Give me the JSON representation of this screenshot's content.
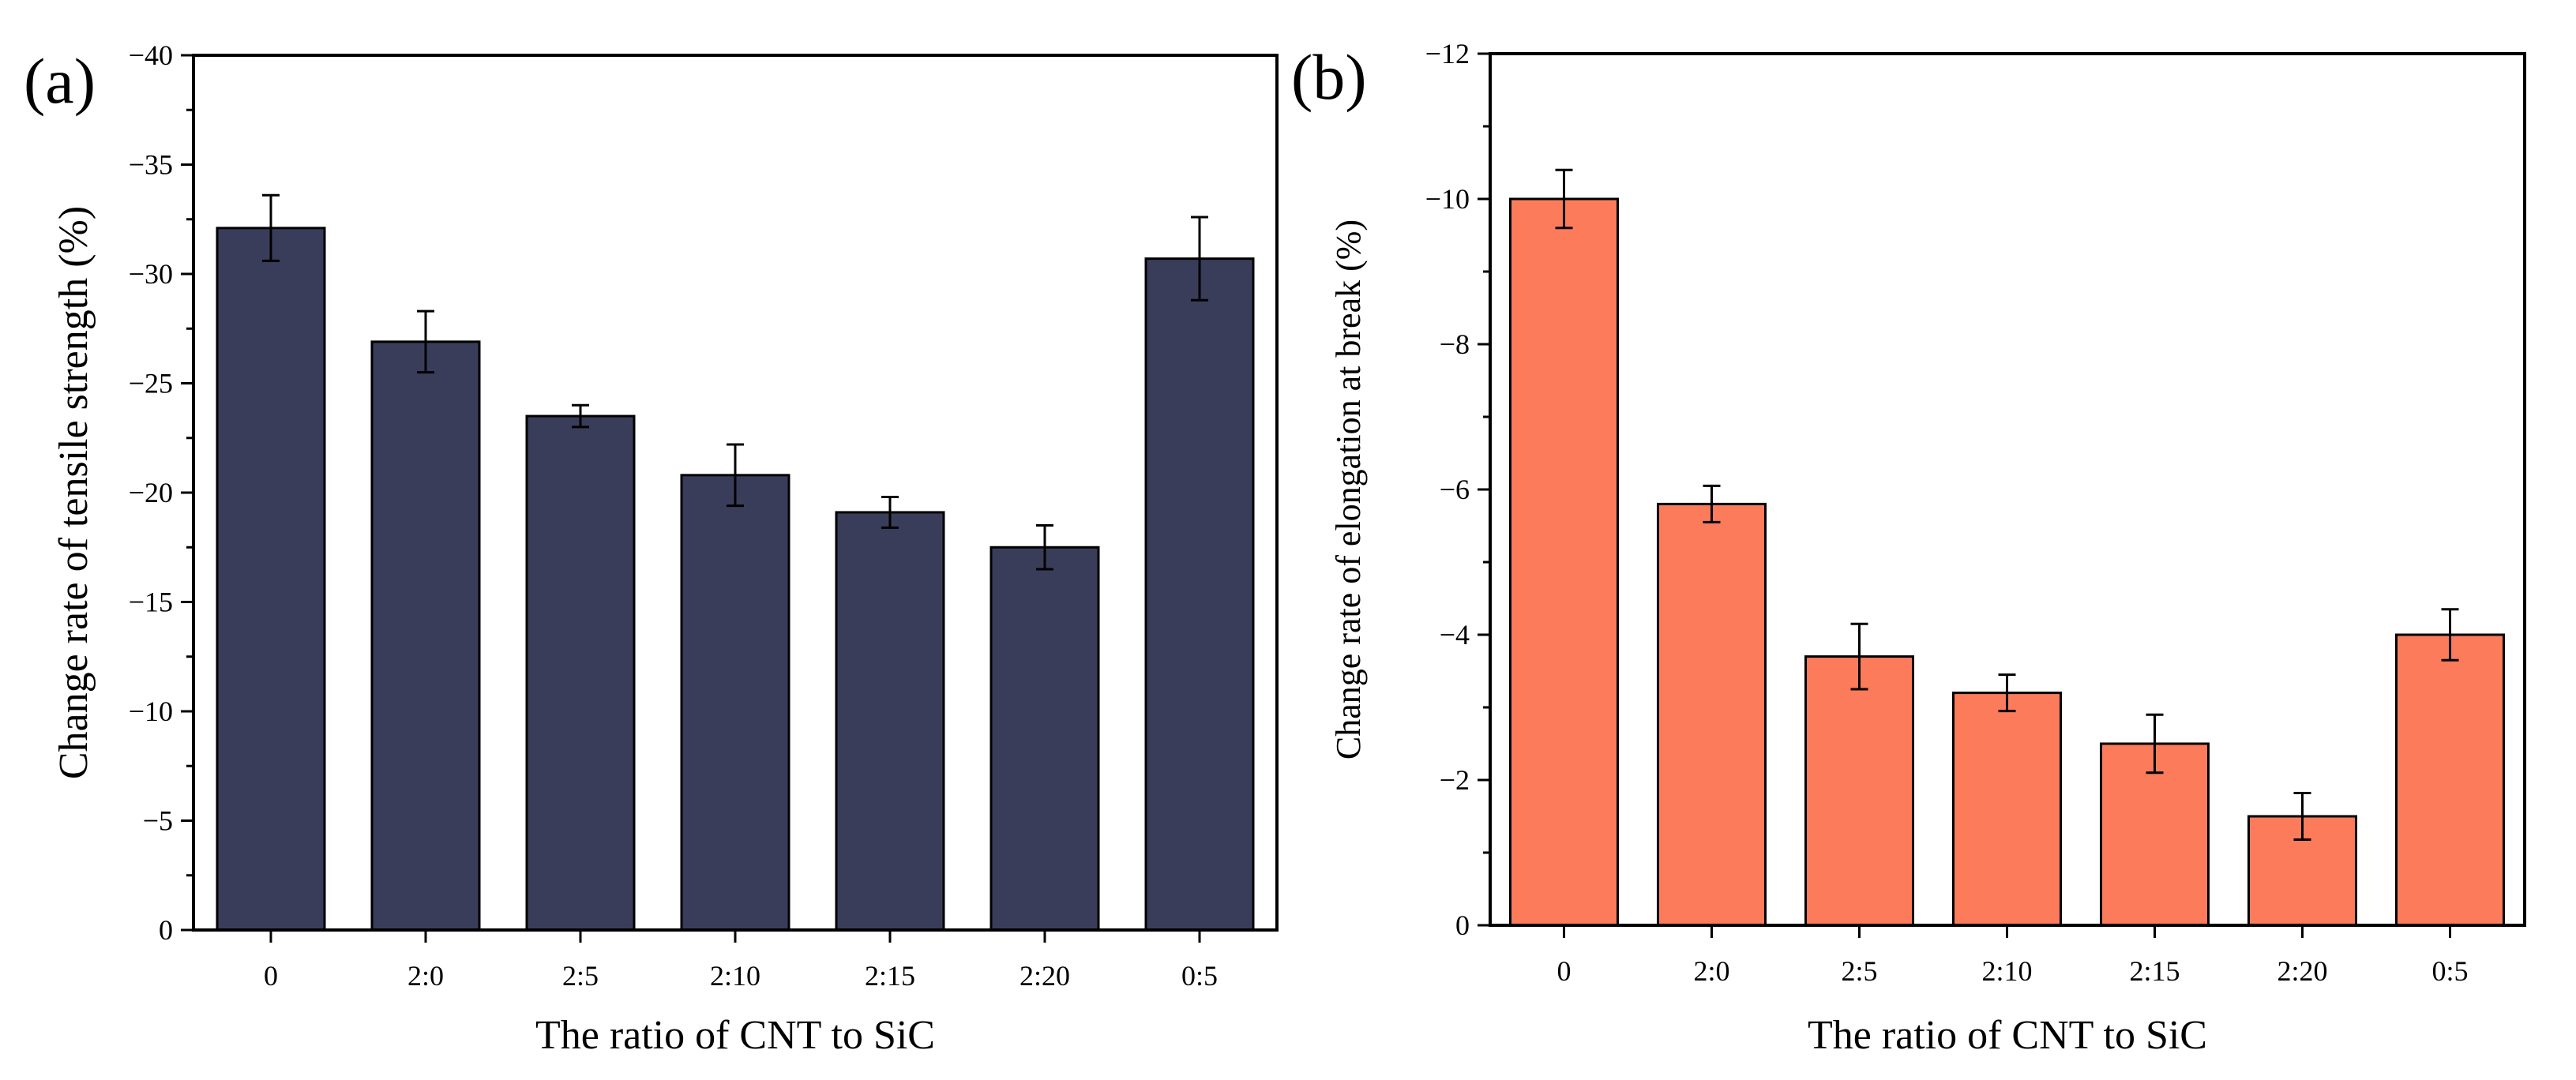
{
  "chart_data": [
    {
      "type": "bar",
      "panel_label": "(a)",
      "categories": [
        "0",
        "2:0",
        "2:5",
        "2:10",
        "2:15",
        "2:20",
        "0:5"
      ],
      "values": [
        -32.1,
        -26.9,
        -23.5,
        -20.8,
        -19.1,
        -17.5,
        -30.7
      ],
      "errors": [
        1.5,
        1.4,
        0.5,
        1.4,
        0.7,
        1.0,
        1.9
      ],
      "xlabel": "The ratio of CNT to SiC",
      "ylabel": "Change rate of tensile strength (%)",
      "ylim": [
        0,
        -40
      ],
      "yticks": [
        0,
        -5,
        -10,
        -15,
        -20,
        -25,
        -30,
        -35,
        -40
      ],
      "ytick_labels": [
        "0",
        "−5",
        "−10",
        "−15",
        "−20",
        "−25",
        "−30",
        "−35",
        "−40"
      ],
      "bar_color": "#3a3d5a",
      "grid": false
    },
    {
      "type": "bar",
      "panel_label": "(b)",
      "categories": [
        "0",
        "2:0",
        "2:5",
        "2:10",
        "2:15",
        "2:20",
        "0:5"
      ],
      "values": [
        -10.0,
        -5.8,
        -3.7,
        -3.2,
        -2.5,
        -1.5,
        -4.0
      ],
      "errors": [
        0.4,
        0.25,
        0.45,
        0.25,
        0.4,
        0.32,
        0.35
      ],
      "xlabel": "The ratio of CNT to SiC",
      "ylabel": "Change rate of elongation at break (%)",
      "ylim": [
        0,
        -12
      ],
      "yticks": [
        0,
        -2,
        -4,
        -6,
        -8,
        -10,
        -12
      ],
      "ytick_labels": [
        "0",
        "−2",
        "−4",
        "−6",
        "−8",
        "−10",
        "−12"
      ],
      "bar_color": "#fb7b5b",
      "grid": false
    }
  ]
}
